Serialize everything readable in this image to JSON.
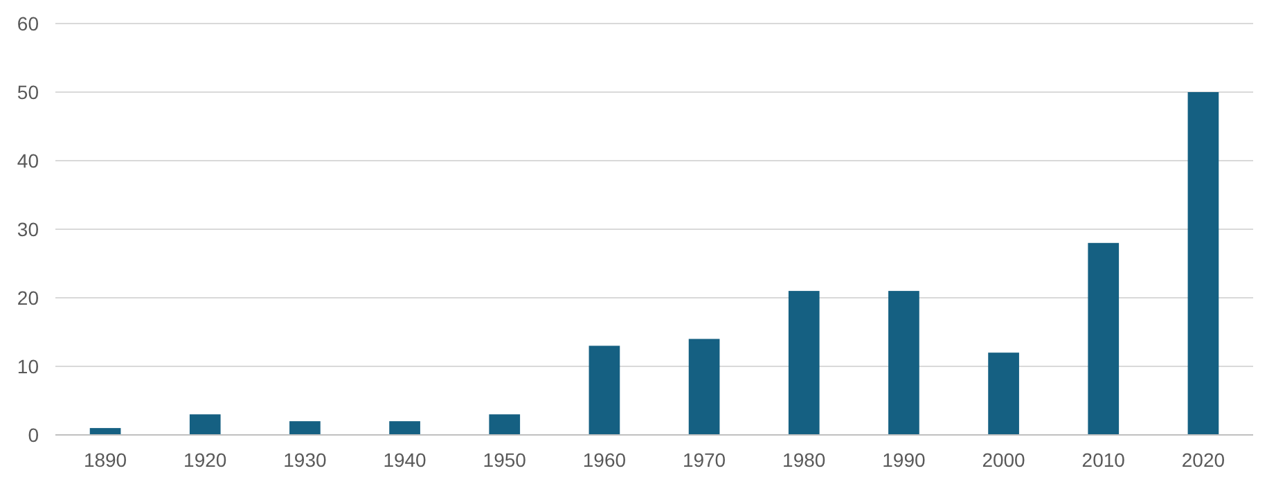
{
  "chart_data": {
    "type": "bar",
    "categories": [
      "1890",
      "1920",
      "1930",
      "1940",
      "1950",
      "1960",
      "1970",
      "1980",
      "1990",
      "2000",
      "2010",
      "2020"
    ],
    "values": [
      1,
      3,
      2,
      2,
      3,
      13,
      14,
      21,
      21,
      12,
      28,
      50
    ],
    "color": "#156082",
    "ylim": [
      0,
      60
    ],
    "yticks": [
      0,
      10,
      20,
      30,
      40,
      50,
      60
    ],
    "grid": "y"
  }
}
